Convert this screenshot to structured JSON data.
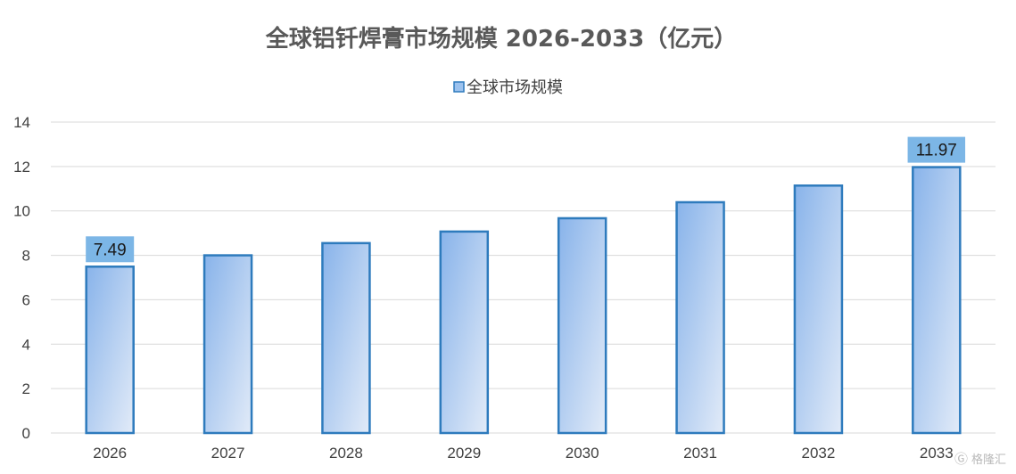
{
  "chart_data": {
    "type": "bar",
    "title": "全球铝钎焊膏市场规模 2026-2033（亿元）",
    "legend": {
      "label": "全球市场规模",
      "position": "top"
    },
    "categories": [
      "2026",
      "2027",
      "2028",
      "2029",
      "2030",
      "2031",
      "2032",
      "2033"
    ],
    "series": [
      {
        "name": "全球市场规模",
        "values": [
          7.49,
          8.0,
          8.55,
          9.07,
          9.67,
          10.39,
          11.14,
          11.97
        ]
      }
    ],
    "data_labels": [
      {
        "category": "2026",
        "text": "7.49"
      },
      {
        "category": "2033",
        "text": "11.97"
      }
    ],
    "ylim": [
      0,
      14
    ],
    "yticks": [
      0,
      2,
      4,
      6,
      8,
      10,
      12,
      14
    ],
    "grid": true,
    "colors": {
      "bar_fill_top": "#8db6ea",
      "bar_fill_bottom": "#dfe9f7",
      "bar_stroke": "#2e7bbd",
      "label_bg": "#7cb6e6",
      "grid": "#d9d9d9"
    }
  },
  "watermark": "格隆汇"
}
